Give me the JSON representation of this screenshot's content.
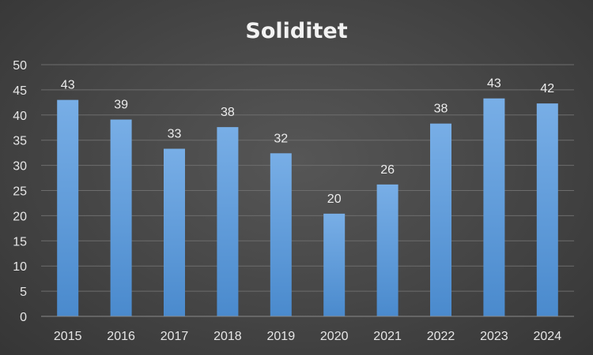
{
  "chart_data": {
    "type": "bar",
    "title": "Soliditet",
    "xlabel": "",
    "ylabel": "",
    "categories": [
      "2015",
      "2016",
      "2017",
      "2018",
      "2019",
      "2020",
      "2021",
      "2022",
      "2023",
      "2024"
    ],
    "values": [
      43,
      39,
      33,
      38,
      32,
      20,
      26,
      38,
      43,
      42
    ],
    "exact_values": [
      43.0,
      39.1,
      33.3,
      37.6,
      32.4,
      20.4,
      26.2,
      38.3,
      43.3,
      42.3
    ],
    "ylim": [
      0,
      50
    ],
    "yticks": [
      0,
      5,
      10,
      15,
      20,
      25,
      30,
      35,
      40,
      45,
      50
    ],
    "grid": true,
    "legend": "none",
    "bar_color_top": "#78aee6",
    "bar_color_bottom": "#4a8acd"
  }
}
